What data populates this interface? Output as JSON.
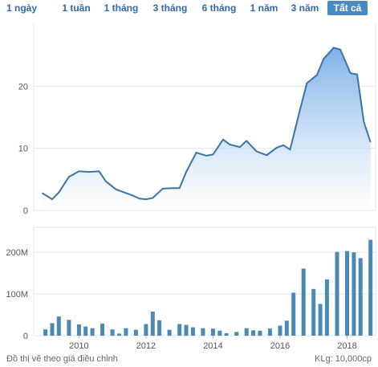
{
  "range_buttons": [
    {
      "label": "1 ngày",
      "active": false
    },
    {
      "label": "1 tuần",
      "active": false
    },
    {
      "label": "1 tháng",
      "active": false
    },
    {
      "label": "3 tháng",
      "active": false
    },
    {
      "label": "6 tháng",
      "active": false
    },
    {
      "label": "1 năm",
      "active": false
    },
    {
      "label": "3 năm",
      "active": false
    },
    {
      "label": "Tất cả",
      "active": true
    }
  ],
  "footer": {
    "note": "Đồ thị vẽ theo giá điều chỉnh",
    "volume_unit": "KLg: 10,000cp"
  },
  "colors": {
    "line": "#3a73a8",
    "area_top": "#6fa8e6",
    "area_bottom": "#ffffff",
    "bar": "#4a89b5",
    "grid": "#e6e6e6"
  },
  "chart_data": [
    {
      "type": "area",
      "x_ticks": [
        "2010",
        "2012",
        "2014",
        "2016",
        "2018"
      ],
      "y_ticks": [
        "0",
        "10",
        "20"
      ],
      "ylim": [
        0,
        30
      ],
      "grid": true,
      "x": [
        2008.9,
        2009.2,
        2009.4,
        2009.7,
        2010.0,
        2010.3,
        2010.6,
        2010.8,
        2011.1,
        2011.3,
        2011.6,
        2011.8,
        2012.0,
        2012.2,
        2012.5,
        2012.8,
        2013.0,
        2013.2,
        2013.5,
        2013.8,
        2014.0,
        2014.3,
        2014.5,
        2014.8,
        2015.0,
        2015.3,
        2015.6,
        2015.9,
        2016.1,
        2016.3,
        2016.6,
        2016.8,
        2017.1,
        2017.3,
        2017.6,
        2017.8,
        2018.1,
        2018.3,
        2018.5,
        2018.7
      ],
      "y": [
        2.8,
        1.8,
        2.9,
        5.4,
        6.3,
        6.2,
        6.3,
        4.7,
        3.4,
        3.0,
        2.4,
        1.9,
        1.8,
        2.0,
        3.5,
        3.6,
        3.6,
        6.2,
        9.3,
        8.8,
        9.0,
        11.4,
        10.6,
        10.2,
        11.2,
        9.5,
        8.9,
        10.1,
        10.5,
        9.8,
        16.3,
        20.5,
        21.8,
        24.4,
        26.2,
        25.9,
        22.1,
        21.9,
        14.2,
        11.0
      ]
    },
    {
      "type": "bar",
      "y_ticks": [
        "0",
        "100M",
        "200M"
      ],
      "ylim": [
        0,
        260
      ],
      "grid": true,
      "x": [
        2009.0,
        2009.2,
        2009.4,
        2009.7,
        2010.0,
        2010.2,
        2010.4,
        2010.7,
        2011.0,
        2011.2,
        2011.4,
        2011.7,
        2012.0,
        2012.2,
        2012.4,
        2012.7,
        2013.0,
        2013.2,
        2013.4,
        2013.7,
        2014.0,
        2014.2,
        2014.4,
        2014.7,
        2015.0,
        2015.2,
        2015.4,
        2015.7,
        2016.0,
        2016.2,
        2016.4,
        2016.7,
        2017.0,
        2017.2,
        2017.4,
        2017.7,
        2018.0,
        2018.2,
        2018.4,
        2018.7
      ],
      "values": [
        15,
        30,
        46,
        38,
        27,
        22,
        18,
        29,
        15,
        5,
        18,
        14,
        28,
        58,
        37,
        14,
        28,
        26,
        20,
        18,
        17,
        12,
        6,
        9,
        18,
        13,
        12,
        17,
        24,
        36,
        103,
        161,
        112,
        76,
        135,
        201,
        203,
        200,
        186,
        230
      ]
    }
  ]
}
